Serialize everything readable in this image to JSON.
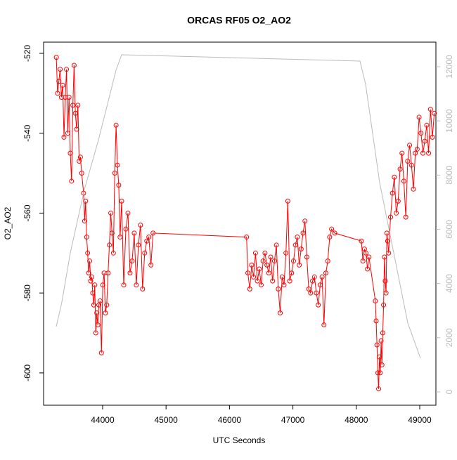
{
  "chart_data": {
    "type": "line",
    "title": "ORCAS RF05 O2_AO2",
    "x_label": "UTC Seconds",
    "y_label": "O2_AO2",
    "xlim": [
      43069,
      49255
    ],
    "ylim": [
      -608.1,
      -517.2
    ],
    "y2lim": [
      -492,
      12907
    ],
    "xticks": [
      44000,
      45000,
      46000,
      47000,
      48000,
      49000
    ],
    "yticks": [
      -600,
      -580,
      -560,
      -540,
      -520
    ],
    "y2ticks": [
      0,
      2000,
      4000,
      6000,
      8000,
      10000,
      12000
    ],
    "y2_color": "#bbbbbb",
    "series": [
      {
        "color": "#ff0000",
        "markers": true,
        "x": [
          43270,
          43290,
          43310,
          43330,
          43350,
          43370,
          43390,
          43410,
          43430,
          43450,
          43470,
          43490,
          43510,
          43530,
          43550,
          43570,
          43590,
          43610,
          43630,
          43650,
          43670,
          43700,
          43716,
          43732,
          43748,
          43764,
          43780,
          43796,
          43812,
          43828,
          43844,
          43860,
          43876,
          43892,
          43908,
          43924,
          43940,
          43960,
          43981,
          44002,
          44023,
          44044,
          44065,
          44086,
          44107,
          44128,
          44149,
          44170,
          44191,
          44212,
          44233,
          44254,
          44275,
          44300,
          44333,
          44366,
          44399,
          44432,
          44465,
          44498,
          44531,
          44564,
          44597,
          44630,
          44663,
          44696,
          44729,
          44762,
          44795,
          46270,
          46290,
          46320,
          46350,
          46380,
          46410,
          46440,
          46470,
          46500,
          46530,
          46560,
          46590,
          46620,
          46650,
          46680,
          46710,
          46740,
          46770,
          46800,
          46830,
          46860,
          46890,
          46920,
          46950,
          46980,
          47010,
          47040,
          47070,
          47100,
          47130,
          47160,
          47190,
          47220,
          47250,
          47280,
          47310,
          47340,
          47370,
          47400,
          47430,
          47460,
          47490,
          47520,
          47550,
          47580,
          47610,
          47660,
          48080,
          48104,
          48128,
          48152,
          48176,
          48200,
          48300,
          48313,
          48326,
          48339,
          48352,
          48365,
          48378,
          48391,
          48404,
          48417,
          48430,
          48443,
          48456,
          48469,
          48482,
          48495,
          48510,
          48540,
          48570,
          48600,
          48630,
          48660,
          48690,
          48720,
          48750,
          48780,
          48810,
          48840,
          48870,
          48900,
          48930,
          48960,
          48990,
          49020,
          49050,
          49080,
          49110,
          49140,
          49170,
          49200,
          49230
        ],
        "values": [
          -521,
          -530,
          -527,
          -524,
          -531,
          -528,
          -541,
          -531,
          -524,
          -540,
          -531,
          -545,
          -552,
          -533,
          -523,
          -535,
          -539,
          -533,
          -547,
          -546,
          -550,
          -555,
          -562,
          -557,
          -566,
          -570,
          -575,
          -572,
          -577,
          -576,
          -580,
          -583,
          -578,
          -590,
          -585,
          -588,
          -583,
          -582,
          -595,
          -578,
          -575,
          -585,
          -583,
          -575,
          -568,
          -560,
          -565,
          -570,
          -550,
          -538,
          -548,
          -553,
          -566,
          -557,
          -578,
          -564,
          -560,
          -575,
          -572,
          -565,
          -578,
          -568,
          -563,
          -579,
          -570,
          -567,
          -566,
          -573,
          -565,
          -566,
          -575,
          -579,
          -573,
          -576,
          -570,
          -577,
          -574,
          -578,
          -572,
          -570,
          -573,
          -575,
          -571,
          -577,
          -572,
          -568,
          -579,
          -585,
          -576,
          -578,
          -570,
          -557,
          -577,
          -575,
          -572,
          -568,
          -566,
          -573,
          -569,
          -565,
          -562,
          -571,
          -579,
          -580,
          -577,
          -576,
          -580,
          -583,
          -578,
          -576,
          -588,
          -575,
          -572,
          -566,
          -564,
          -565,
          -567,
          -572,
          -569,
          -570,
          -574,
          -571,
          -582,
          -587,
          -593,
          -600,
          -604,
          -596,
          -600,
          -592,
          -598,
          -590,
          -583,
          -571,
          -577,
          -580,
          -565,
          -567,
          -570,
          -561,
          -555,
          -551,
          -560,
          -557,
          -549,
          -545,
          -552,
          -561,
          -547,
          -543,
          -548,
          -554,
          -545,
          -544,
          -536,
          -540,
          -545,
          -542,
          -538,
          -545,
          -534,
          -541,
          -535
        ]
      },
      {
        "color": "#bbbbbb",
        "axis": "y2",
        "markers": false,
        "x": [
          43268,
          43357,
          43490,
          43712,
          43933,
          44100,
          44211,
          44299,
          48058,
          48146,
          48368,
          48590,
          48812,
          49011
        ],
        "values": [
          2410,
          3318,
          5132,
          7465,
          9280,
          10834,
          11871,
          12441,
          12208,
          11353,
          7724,
          5132,
          2540,
          1244
        ]
      }
    ]
  }
}
